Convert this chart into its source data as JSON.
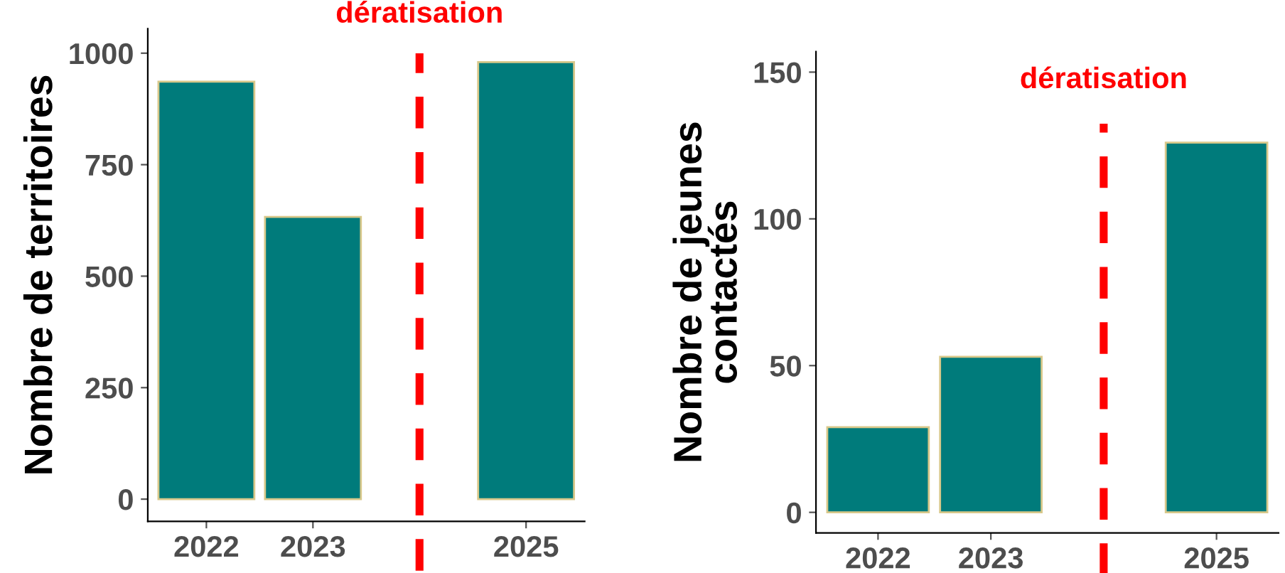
{
  "chart_data": [
    {
      "type": "bar",
      "ylabel": "Nombre de territoires",
      "x": [
        2022,
        2023,
        2025
      ],
      "values": [
        936,
        633,
        980
      ],
      "color": "#007b7b",
      "xlim": [
        2021.45,
        2025.55
      ],
      "xticks": [
        2022,
        2023,
        2025
      ],
      "ylim": [
        -50,
        1055
      ],
      "yticks": [
        0,
        250,
        500,
        750,
        1000
      ],
      "ref_lines": [
        {
          "axis": "x",
          "value": 2024,
          "label": "dératisation",
          "color": "#ff0000",
          "line_style": "dashed"
        }
      ]
    },
    {
      "type": "bar",
      "ylabel": "Nombre de jeunes\ncontactés",
      "x": [
        2022,
        2023,
        2025
      ],
      "values": [
        29,
        53,
        126
      ],
      "color": "#007b7b",
      "xlim": [
        2021.45,
        2025.55
      ],
      "xticks": [
        2022,
        2023,
        2025
      ],
      "ylim": [
        -7,
        157
      ],
      "yticks": [
        0,
        50,
        100,
        150
      ],
      "ref_lines": [
        {
          "axis": "x",
          "value": 2024,
          "label": "dératisation",
          "color": "#ff0000",
          "line_style": "dashed"
        }
      ]
    }
  ]
}
